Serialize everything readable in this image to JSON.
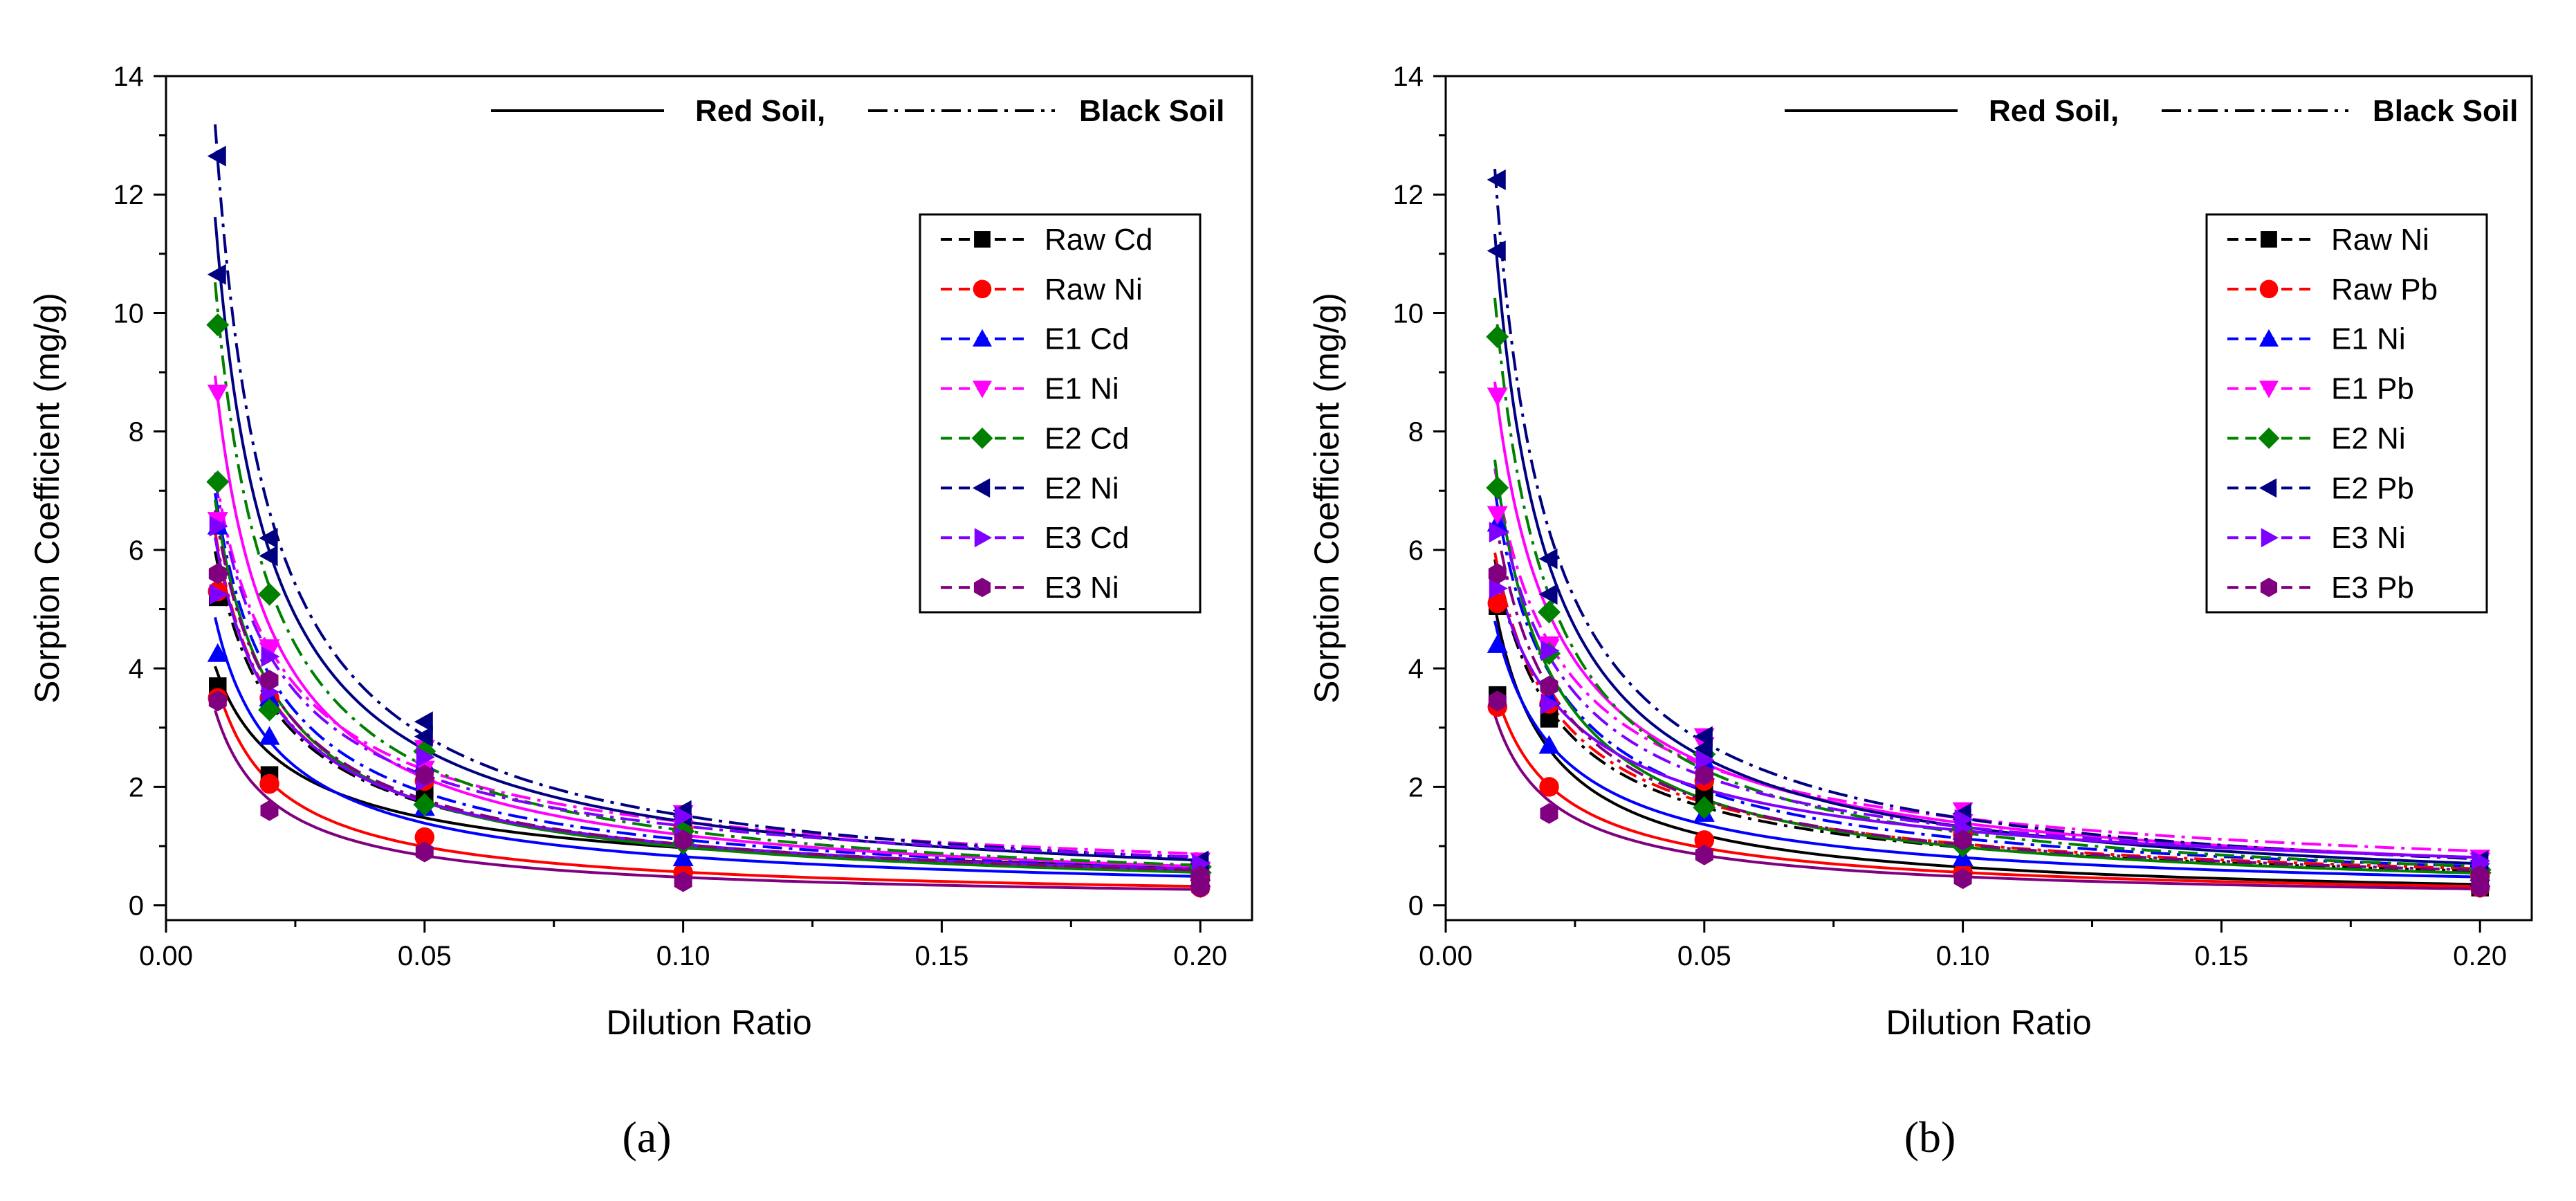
{
  "chart_data": [
    {
      "type": "scatter",
      "panel_label": "(a)",
      "xlabel": "Dilution Ratio",
      "ylabel": "Sorption Coefficient (mg/g)",
      "xlim": [
        0,
        0.21
      ],
      "ylim": [
        -0.25,
        14
      ],
      "xticks": [
        0.0,
        0.05,
        0.1,
        0.15,
        0.2
      ],
      "xtick_labels": [
        "0.00",
        "0.05",
        "0.10",
        "0.15",
        "0.20"
      ],
      "yticks": [
        0,
        2,
        4,
        6,
        8,
        10,
        12,
        14
      ],
      "ytick_labels": [
        "0",
        "2",
        "4",
        "6",
        "8",
        "10",
        "12",
        "14"
      ],
      "line_key": {
        "red_label": "Red Soil,",
        "black_label": "Black Soil",
        "red_style": "solid",
        "black_style": "dash-dot"
      },
      "x": [
        0.01,
        0.02,
        0.05,
        0.1,
        0.2
      ],
      "series": [
        {
          "name": "Raw Cd",
          "color": "#000000",
          "marker": "square",
          "red_values": [
            3.7,
            2.2,
            1.8,
            1.4,
            0.45
          ],
          "black_values": [
            5.2,
            3.4,
            2.0,
            1.2,
            0.5
          ]
        },
        {
          "name": "Raw Ni",
          "color": "#ff0000",
          "marker": "circle",
          "red_values": [
            3.5,
            2.05,
            1.15,
            0.55,
            0.3
          ],
          "black_values": [
            5.3,
            3.5,
            2.1,
            1.3,
            0.45
          ]
        },
        {
          "name": "E1 Cd",
          "color": "#0000ff",
          "marker": "triangle-up",
          "red_values": [
            4.25,
            2.85,
            1.65,
            0.8,
            0.45
          ],
          "black_values": [
            6.4,
            3.5,
            2.4,
            1.2,
            0.55
          ]
        },
        {
          "name": "E1 Ni",
          "color": "#ff00ff",
          "marker": "triangle-down",
          "red_values": [
            8.65,
            4.35,
            2.3,
            1.3,
            0.6
          ],
          "black_values": [
            6.5,
            4.3,
            2.65,
            1.55,
            0.75
          ]
        },
        {
          "name": "E2 Cd",
          "color": "#008000",
          "marker": "diamond",
          "red_values": [
            7.15,
            3.3,
            1.7,
            1.05,
            0.55
          ],
          "black_values": [
            9.8,
            5.25,
            2.6,
            1.25,
            0.65
          ]
        },
        {
          "name": "E2 Ni",
          "color": "#000080",
          "marker": "triangle-left",
          "red_values": [
            10.65,
            5.9,
            2.85,
            1.5,
            0.7
          ],
          "black_values": [
            12.65,
            6.2,
            3.1,
            1.6,
            0.75
          ]
        },
        {
          "name": "E3 Cd",
          "color": "#8000ff",
          "marker": "triangle-right",
          "red_values": [
            5.25,
            3.6,
            2.1,
            1.15,
            0.5
          ],
          "black_values": [
            6.4,
            4.2,
            2.5,
            1.5,
            0.7
          ]
        },
        {
          "name": "E3 Ni",
          "color": "#800080",
          "marker": "hexagon",
          "red_values": [
            3.45,
            1.6,
            0.9,
            0.4,
            0.3
          ],
          "black_values": [
            5.6,
            3.8,
            2.2,
            1.1,
            0.5
          ]
        }
      ]
    },
    {
      "type": "scatter",
      "panel_label": "(b)",
      "xlabel": "Dilution Ratio",
      "ylabel": "Sorption Coefficient (mg/g)",
      "xlim": [
        0,
        0.21
      ],
      "ylim": [
        -0.25,
        14
      ],
      "xticks": [
        0.0,
        0.05,
        0.1,
        0.15,
        0.2
      ],
      "xtick_labels": [
        "0.00",
        "0.05",
        "0.10",
        "0.15",
        "0.20"
      ],
      "yticks": [
        0,
        2,
        4,
        6,
        8,
        10,
        12,
        14
      ],
      "ytick_labels": [
        "0",
        "2",
        "4",
        "6",
        "8",
        "10",
        "12",
        "14"
      ],
      "line_key": {
        "red_label": "Red Soil,",
        "black_label": "Black Soil",
        "red_style": "solid",
        "black_style": "dash-dot"
      },
      "x": [
        0.01,
        0.02,
        0.05,
        0.1,
        0.2
      ],
      "series": [
        {
          "name": "Raw Ni",
          "color": "#000000",
          "marker": "square",
          "red_values": [
            3.55,
            3.15,
            1.85,
            0.55,
            0.3
          ],
          "black_values": [
            5.05,
            3.2,
            2.0,
            1.2,
            0.45
          ]
        },
        {
          "name": "Raw Pb",
          "color": "#ff0000",
          "marker": "circle",
          "red_values": [
            3.35,
            2.0,
            1.1,
            0.55,
            0.3
          ],
          "black_values": [
            5.1,
            3.4,
            2.1,
            1.2,
            0.5
          ]
        },
        {
          "name": "E1 Ni",
          "color": "#0000ff",
          "marker": "triangle-up",
          "red_values": [
            4.4,
            2.7,
            1.55,
            0.8,
            0.45
          ],
          "black_values": [
            6.45,
            3.5,
            2.45,
            1.25,
            0.55
          ]
        },
        {
          "name": "E1 Pb",
          "color": "#ff00ff",
          "marker": "triangle-down",
          "red_values": [
            8.6,
            4.35,
            2.85,
            1.4,
            0.75
          ],
          "black_values": [
            6.6,
            4.4,
            2.7,
            1.6,
            0.8
          ]
        },
        {
          "name": "E2 Ni",
          "color": "#008000",
          "marker": "diamond",
          "red_values": [
            7.05,
            4.25,
            1.65,
            1.0,
            0.55
          ],
          "black_values": [
            9.6,
            4.95,
            2.55,
            1.3,
            0.6
          ]
        },
        {
          "name": "E2 Pb",
          "color": "#000080",
          "marker": "triangle-left",
          "red_values": [
            11.05,
            5.25,
            2.65,
            1.45,
            0.65
          ],
          "black_values": [
            12.25,
            5.85,
            2.85,
            1.55,
            0.75
          ]
        },
        {
          "name": "E3 Ni",
          "color": "#8000ff",
          "marker": "triangle-right",
          "red_values": [
            5.35,
            3.4,
            2.2,
            1.3,
            0.75
          ],
          "black_values": [
            6.3,
            4.3,
            2.45,
            1.45,
            0.7
          ]
        },
        {
          "name": "E3 Pb",
          "color": "#800080",
          "marker": "hexagon",
          "red_values": [
            3.45,
            1.55,
            0.85,
            0.45,
            0.3
          ],
          "black_values": [
            5.6,
            3.7,
            2.2,
            1.1,
            0.5
          ]
        }
      ]
    }
  ]
}
